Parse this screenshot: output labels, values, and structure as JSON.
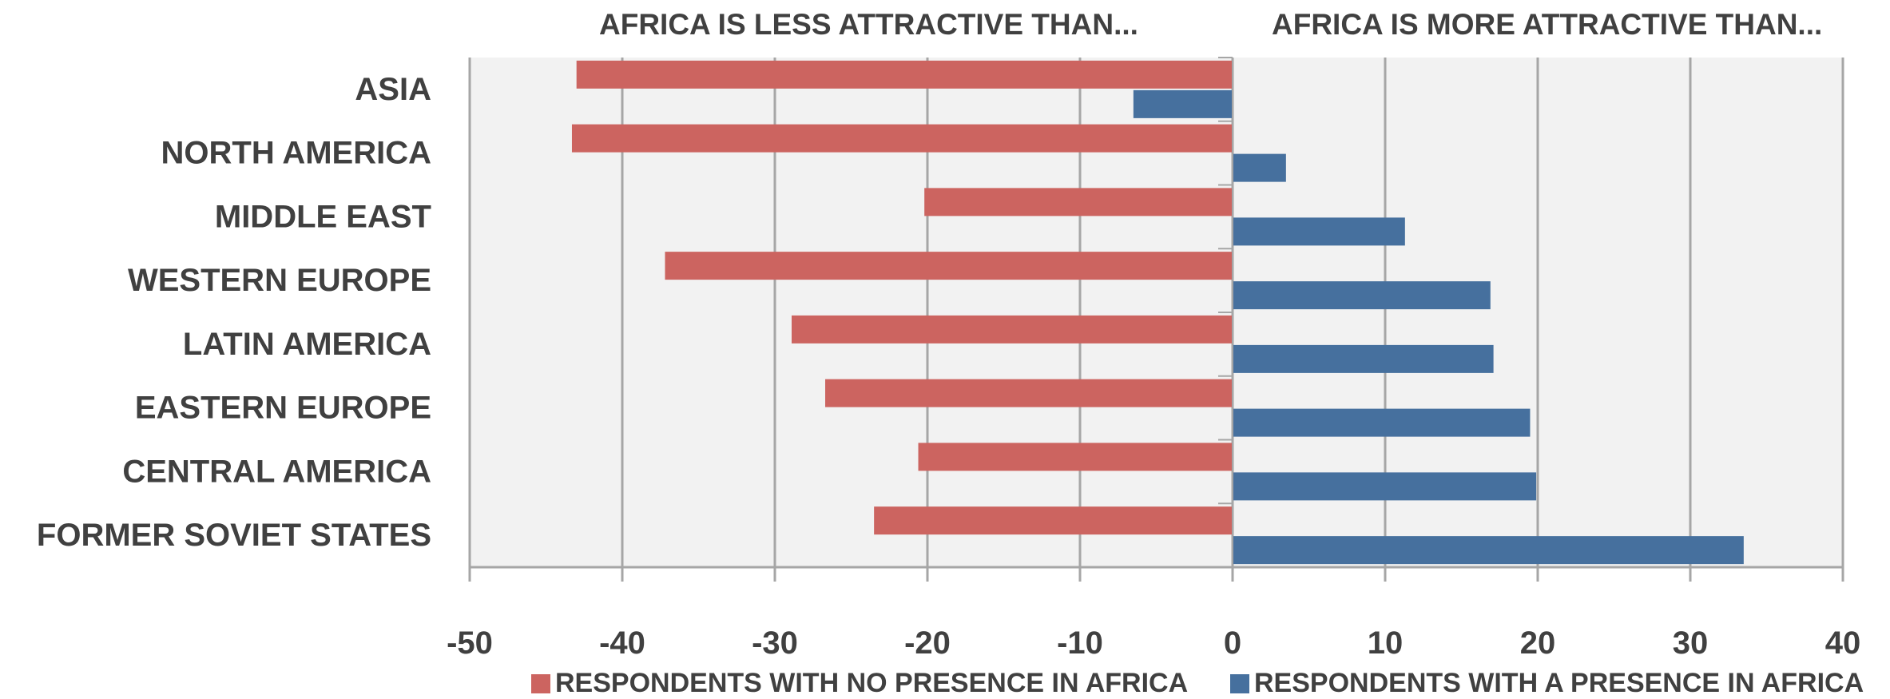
{
  "header": {
    "left": "AFRICA IS LESS ATTRACTIVE THAN...",
    "right": "AFRICA IS MORE ATTRACTIVE THAN..."
  },
  "colors": {
    "no_presence": "#cc6460",
    "presence": "#46709e",
    "plot_bg": "#f2f2f2",
    "grid": "#a6a6a6",
    "text": "#404040"
  },
  "legend": {
    "no_presence_label": "RESPONDENTS WITH NO PRESENCE  IN AFRICA",
    "presence_label": "RESPONDENTS WITH A PRESENCE  IN AFRICA"
  },
  "chart_data": {
    "type": "bar",
    "orientation": "horizontal",
    "categories": [
      "ASIA",
      "NORTH AMERICA",
      "MIDDLE EAST",
      "WESTERN EUROPE",
      "LATIN AMERICA",
      "EASTERN EUROPE",
      "CENTRAL AMERICA",
      "FORMER SOVIET STATES"
    ],
    "series": [
      {
        "name": "RESPONDENTS WITH NO PRESENCE  IN AFRICA",
        "values": [
          -43,
          -43.3,
          -20.2,
          -37.2,
          -28.9,
          -26.7,
          -20.6,
          -23.5
        ]
      },
      {
        "name": "RESPONDENTS WITH A PRESENCE  IN AFRICA",
        "values": [
          -6.5,
          3.5,
          11.3,
          16.9,
          17.1,
          19.5,
          19.9,
          33.5
        ]
      }
    ],
    "xlim": [
      -50,
      40
    ],
    "xticks": [
      -50,
      -40,
      -30,
      -20,
      -10,
      0,
      10,
      20,
      30,
      40
    ],
    "grid": true,
    "legend_position": "bottom"
  }
}
